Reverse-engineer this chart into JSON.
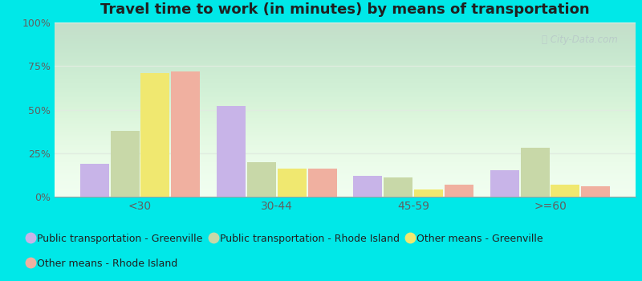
{
  "title": "Travel time to work (in minutes) by means of transportation",
  "categories": [
    "<30",
    "30-44",
    "45-59",
    ">=60"
  ],
  "series": {
    "Public transportation - Greenville": [
      19,
      52,
      12,
      15
    ],
    "Public transportation - Rhode Island": [
      38,
      20,
      11,
      28
    ],
    "Other means - Greenville": [
      71,
      16,
      4,
      7
    ],
    "Other means - Rhode Island": [
      72,
      16,
      7,
      6
    ]
  },
  "colors": {
    "Public transportation - Greenville": "#c8b4e8",
    "Public transportation - Rhode Island": "#c8d8a8",
    "Other means - Greenville": "#f0e870",
    "Other means - Rhode Island": "#f0b0a0"
  },
  "ylim": [
    0,
    100
  ],
  "yticks": [
    0,
    25,
    50,
    75,
    100
  ],
  "ytick_labels": [
    "0%",
    "25%",
    "50%",
    "75%",
    "100%"
  ],
  "bg_top": "#d8f0d8",
  "bg_bottom": "#f0fff0",
  "outer_background": "#00e8e8",
  "title_color": "#202020",
  "title_fontsize": 13,
  "legend_fontsize": 9,
  "axis_label_color": "#606060",
  "watermark_color": "#b8c8c8",
  "grid_color": "#e0ece0"
}
